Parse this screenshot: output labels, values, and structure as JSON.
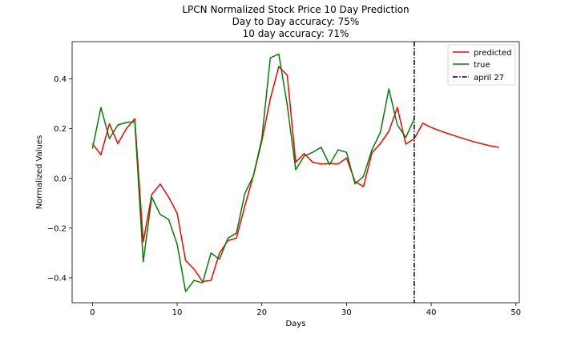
{
  "chart_data": {
    "type": "line",
    "title_lines": [
      "LPCN Normalized Stock Price 10 Day Prediction",
      "Day to Day accuracy: 75%",
      "10 day accuracy: 71%"
    ],
    "xlabel": "Days",
    "ylabel": "Normalized Values",
    "xlim": [
      -2.4,
      50.4
    ],
    "ylim": [
      -0.5,
      0.55
    ],
    "xticks": [
      0,
      10,
      20,
      30,
      40,
      50
    ],
    "yticks": [
      -0.4,
      -0.2,
      0.0,
      0.2,
      0.4
    ],
    "xtick_labels": [
      "0",
      "10",
      "20",
      "30",
      "40",
      "50"
    ],
    "ytick_labels": [
      "−0.4",
      "−0.2",
      "0.0",
      "0.2",
      "0.4"
    ],
    "grid": false,
    "legend_position": "top-right",
    "series": [
      {
        "name": "predicted",
        "color": "#ff0000",
        "x": [
          0,
          1,
          2,
          3,
          4,
          5,
          6,
          7,
          8,
          9,
          10,
          11,
          12,
          13,
          14,
          15,
          16,
          17,
          18,
          19,
          20,
          21,
          22,
          23,
          24,
          25,
          26,
          27,
          28,
          29,
          30,
          31,
          32,
          33,
          34,
          35,
          36,
          37,
          38,
          39,
          40,
          41,
          42,
          43,
          44,
          45,
          46,
          47,
          48
        ],
        "y": [
          0.14,
          0.095,
          0.22,
          0.14,
          0.2,
          0.24,
          -0.255,
          -0.065,
          -0.023,
          -0.075,
          -0.14,
          -0.33,
          -0.365,
          -0.415,
          -0.41,
          -0.3,
          -0.25,
          -0.24,
          -0.11,
          0.01,
          0.15,
          0.32,
          0.45,
          0.415,
          0.065,
          0.1,
          0.065,
          0.058,
          0.06,
          0.058,
          0.082,
          -0.012,
          -0.033,
          0.103,
          0.14,
          0.19,
          0.285,
          0.138,
          0.16,
          0.222,
          0.205,
          0.192,
          0.18,
          0.169,
          0.158,
          0.148,
          0.139,
          0.131,
          0.125
        ]
      },
      {
        "name": "true",
        "color": "#008000",
        "x": [
          0,
          1,
          2,
          3,
          4,
          5,
          6,
          7,
          8,
          9,
          10,
          11,
          12,
          13,
          14,
          15,
          16,
          17,
          18,
          19,
          20,
          21,
          22,
          23,
          24,
          25,
          26,
          27,
          28,
          29,
          30,
          31,
          32,
          33,
          34,
          35,
          36,
          37,
          38
        ],
        "y": [
          0.12,
          0.285,
          0.16,
          0.215,
          0.225,
          0.228,
          -0.335,
          -0.075,
          -0.145,
          -0.165,
          -0.265,
          -0.455,
          -0.41,
          -0.42,
          -0.3,
          -0.325,
          -0.24,
          -0.22,
          -0.06,
          0.01,
          0.16,
          0.485,
          0.5,
          0.295,
          0.035,
          0.09,
          0.105,
          0.125,
          0.055,
          0.115,
          0.105,
          -0.022,
          0.008,
          0.115,
          0.185,
          0.36,
          0.215,
          0.165,
          0.24
        ]
      }
    ],
    "vline": {
      "name": "april 27",
      "x": 38,
      "color": "#000000",
      "style": "dashdot"
    }
  }
}
